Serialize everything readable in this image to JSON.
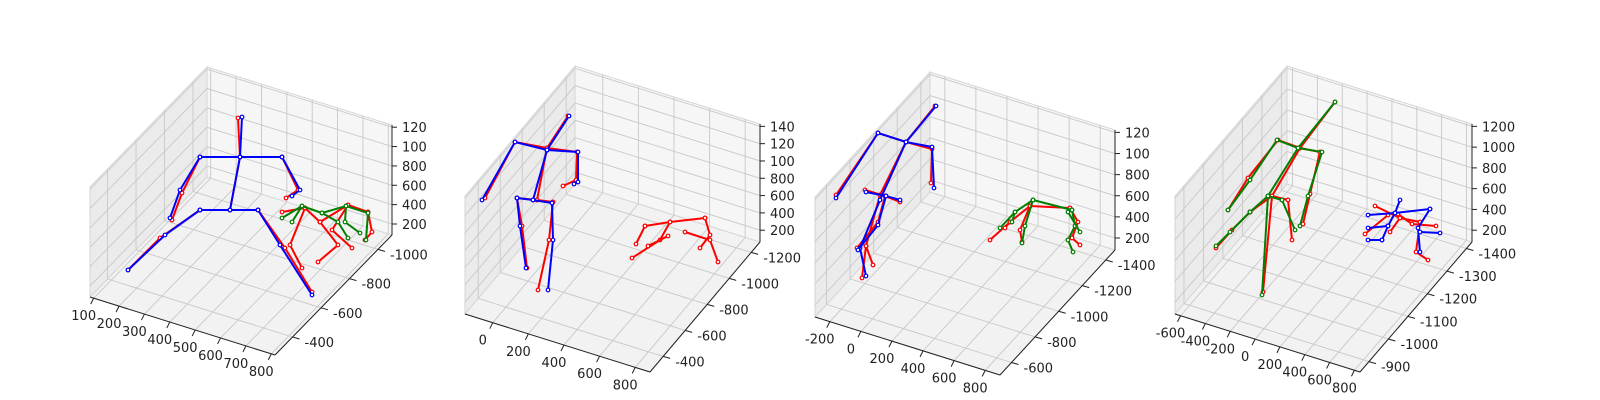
{
  "colors": {
    "red": "#ff0000",
    "green": "#008000",
    "blue": "#0000ff"
  },
  "chart_data": [
    {
      "type": "3d-skeleton",
      "xlim": [
        100,
        800
      ],
      "ylim": [
        -1100,
        -300
      ],
      "zlim": [
        0,
        1300
      ],
      "x_ticks": [
        "100",
        "200",
        "300",
        "400",
        "500",
        "600",
        "700",
        "800"
      ],
      "y_ticks": [
        "-400",
        "-600",
        "-800",
        "-1000"
      ],
      "z_ticks": [
        "200",
        "400",
        "600",
        "800",
        "100",
        "120"
      ],
      "grid": true
    },
    {
      "type": "3d-skeleton",
      "xlim": [
        -100,
        900
      ],
      "ylim": [
        -1300,
        -300
      ],
      "zlim": [
        0,
        1450
      ],
      "x_ticks": [
        "0",
        "200",
        "400",
        "600",
        "800"
      ],
      "y_ticks": [
        "-400",
        "-600",
        "-800",
        "-1000",
        "-1200"
      ],
      "z_ticks": [
        "200",
        "400",
        "600",
        "800",
        "100",
        "120",
        "140"
      ],
      "grid": true
    },
    {
      "type": "3d-skeleton",
      "xlim": [
        -250,
        900
      ],
      "ylim": [
        -1450,
        -500
      ],
      "zlim": [
        0,
        1350
      ],
      "x_ticks": [
        "-200",
        "0",
        "200",
        "400",
        "600",
        "800"
      ],
      "y_ticks": [
        "-600",
        "-800",
        "-1000",
        "-1200",
        "-1400"
      ],
      "z_ticks": [
        "200",
        "400",
        "600",
        "800",
        "100",
        "120"
      ],
      "grid": true
    },
    {
      "type": "3d-skeleton",
      "xlim": [
        -700,
        850
      ],
      "ylim": [
        -1450,
        -850
      ],
      "zlim": [
        0,
        1350
      ],
      "x_ticks": [
        "-600",
        "-400",
        "-200",
        "0",
        "200",
        "400",
        "600",
        "800"
      ],
      "y_ticks": [
        "-900",
        "-1000",
        "-1100",
        "-1200",
        "-1300",
        "-1400"
      ],
      "z_ticks": [
        "200",
        "400",
        "600",
        "800",
        "1000",
        "1200"
      ],
      "grid": true
    }
  ]
}
